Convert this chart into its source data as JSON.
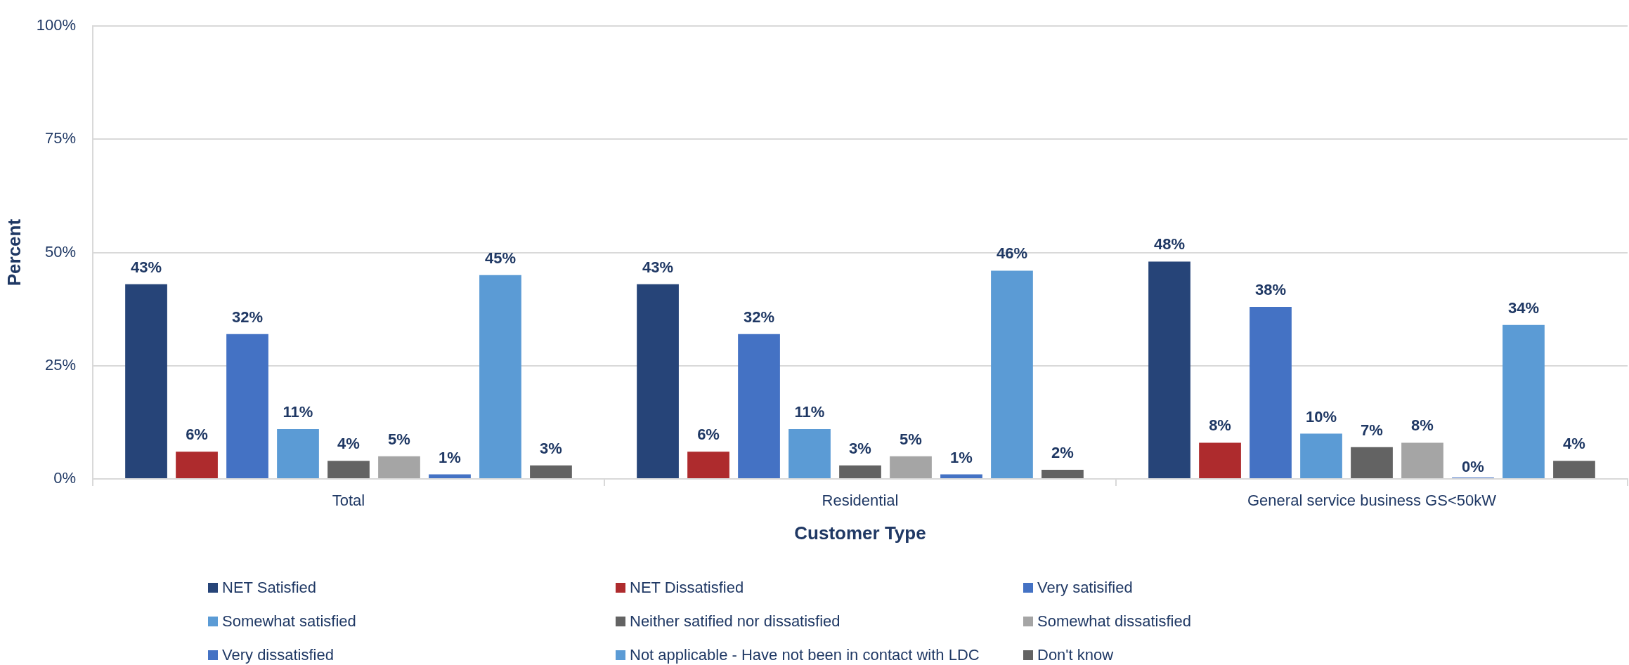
{
  "chart_data": {
    "type": "bar",
    "xlabel": "Customer Type",
    "ylabel": "Percent",
    "categories": [
      "Total",
      "Residential",
      "General service business GS<50kW"
    ],
    "series": [
      {
        "name": "NET Satisfied",
        "color": "#264478",
        "values": [
          43,
          43,
          48
        ],
        "value_labels": [
          "43%",
          "43%",
          "48%"
        ]
      },
      {
        "name": "NET Dissatisfied",
        "color": "#ae2b2d",
        "values": [
          6,
          6,
          8
        ],
        "value_labels": [
          "6%",
          "6%",
          "8%"
        ]
      },
      {
        "name": "Very satisified",
        "color": "#4472c4",
        "values": [
          32,
          32,
          38
        ],
        "value_labels": [
          "32%",
          "32%",
          "38%"
        ]
      },
      {
        "name": "Somewhat satisfied",
        "color": "#5b9bd5",
        "values": [
          11,
          11,
          10
        ],
        "value_labels": [
          "11%",
          "11%",
          "10%"
        ]
      },
      {
        "name": "Neither satified nor dissatisfied",
        "color": "#636363",
        "values": [
          4,
          3,
          7
        ],
        "value_labels": [
          "4%",
          "3%",
          "7%"
        ]
      },
      {
        "name": "Somewhat dissatisfied",
        "color": "#a5a5a5",
        "values": [
          5,
          5,
          8
        ],
        "value_labels": [
          "5%",
          "5%",
          "8%"
        ]
      },
      {
        "name": "Very dissatisfied",
        "color": "#4472c4",
        "values": [
          1,
          1,
          0
        ],
        "value_labels": [
          "1%",
          "1%",
          "0%"
        ]
      },
      {
        "name": "Not applicable - Have not been in contact with LDC",
        "color": "#5b9bd5",
        "values": [
          45,
          46,
          34
        ],
        "value_labels": [
          "45%",
          "46%",
          "34%"
        ]
      },
      {
        "name": "Don't know",
        "color": "#636363",
        "values": [
          3,
          2,
          4
        ],
        "value_labels": [
          "3%",
          "2%",
          "4%"
        ]
      }
    ],
    "ylim": [
      0,
      100
    ],
    "yticks": [
      {
        "value": 0,
        "label": "0%"
      },
      {
        "value": 25,
        "label": "25%"
      },
      {
        "value": 50,
        "label": "50%"
      },
      {
        "value": 75,
        "label": "75%"
      },
      {
        "value": 100,
        "label": "100%"
      }
    ],
    "grid": "y",
    "legend": "bottom"
  }
}
